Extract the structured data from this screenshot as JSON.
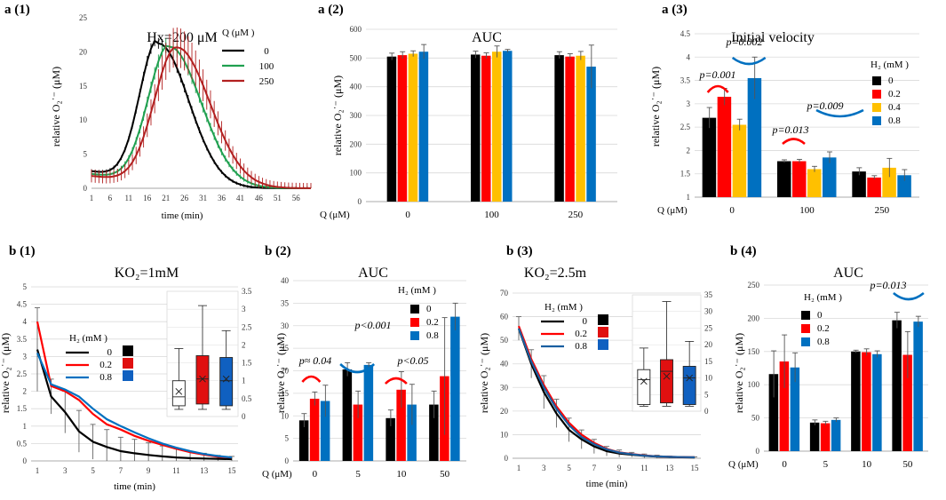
{
  "figure": {
    "colors": {
      "black": "#000000",
      "red": "#ff0000",
      "yellow": "#ffc000",
      "blue": "#0070c0",
      "green": "#20a050",
      "darkred": "#b22020"
    },
    "boxplot_colors": [
      "#ffffff",
      "#e01010",
      "#1060c0"
    ]
  },
  "chart_data": [
    {
      "id": "a1",
      "panel_label": "a (1)",
      "type": "line",
      "title": "Hx=200 μM",
      "xlabel": "time (min)",
      "ylabel": "relative O₂˙⁻ (μM)",
      "legend_title": "Q (μM )",
      "xticks": [
        "1",
        "6",
        "11",
        "16",
        "21",
        "26",
        "31",
        "36",
        "41",
        "46",
        "51",
        "56"
      ],
      "yticks": [
        "0",
        "5",
        "10",
        "15",
        "20",
        "25"
      ],
      "xlim": [
        1,
        60
      ],
      "ylim": [
        0,
        25
      ],
      "series": [
        {
          "name": "0",
          "color": "#000000",
          "peak_time": 19,
          "peak": 22.0,
          "rise": 7.0,
          "fall": 11.5,
          "start": 2.5,
          "err": 0.6
        },
        {
          "name": "100",
          "color": "#20a050",
          "peak_time": 22,
          "peak": 21.4,
          "rise": 8.0,
          "fall": 12.0,
          "start": 2.1,
          "err": 0.8
        },
        {
          "name": "250",
          "color": "#b22020",
          "peak_time": 24,
          "peak": 21.2,
          "rise": 8.5,
          "fall": 12.5,
          "start": 1.8,
          "err": 2.2
        }
      ]
    },
    {
      "id": "a2",
      "panel_label": "a (2)",
      "type": "bar",
      "title": "AUC",
      "xlabel": "Q (μM)",
      "ylabel": "relative O₂˙⁻ (μM)",
      "categories": [
        "0",
        "100",
        "250"
      ],
      "yticks": [
        "0",
        "100",
        "200",
        "300",
        "400",
        "500",
        "600"
      ],
      "ylim": [
        0,
        600
      ],
      "series": [
        {
          "name": "0",
          "color": "#000000",
          "values": [
            505,
            512,
            510
          ],
          "errors": [
            12,
            12,
            12
          ]
        },
        {
          "name": "0.2",
          "color": "#ff0000",
          "values": [
            510,
            508,
            505
          ],
          "errors": [
            12,
            10,
            10
          ]
        },
        {
          "name": "0.4",
          "color": "#ffc000",
          "values": [
            515,
            522,
            508
          ],
          "errors": [
            10,
            20,
            15
          ]
        },
        {
          "name": "0.8",
          "color": "#0070c0",
          "values": [
            522,
            525,
            470
          ],
          "errors": [
            25,
            5,
            75
          ]
        }
      ]
    },
    {
      "id": "a3",
      "panel_label": "a (3)",
      "type": "bar",
      "title": "Initial velocity",
      "xlabel": "Q (μM)",
      "ylabel": "relative O₂˙⁻ (μM)",
      "legend_title": "H₂ (mM )",
      "categories": [
        "0",
        "100",
        "250"
      ],
      "yticks": [
        "1",
        "1.5",
        "2",
        "2.5",
        "3",
        "3.5",
        "4",
        "4.5"
      ],
      "ylim": [
        1,
        4.5
      ],
      "series": [
        {
          "name": "0",
          "color": "#000000",
          "values": [
            2.7,
            1.77,
            1.55
          ],
          "errors": [
            0.22,
            0.03,
            0.08
          ]
        },
        {
          "name": "0.2",
          "color": "#ff0000",
          "values": [
            3.15,
            1.77,
            1.42
          ],
          "errors": [
            0.18,
            0.04,
            0.04
          ]
        },
        {
          "name": "0.4",
          "color": "#ffc000",
          "values": [
            2.55,
            1.6,
            1.63
          ],
          "errors": [
            0.12,
            0.06,
            0.2
          ]
        },
        {
          "name": "0.8",
          "color": "#0070c0",
          "values": [
            3.55,
            1.85,
            1.47
          ],
          "errors": [
            0.45,
            0.12,
            0.12
          ]
        }
      ],
      "annotations": [
        "p=0.001",
        "p=0.002",
        "p=0.013",
        "p=0.009"
      ]
    },
    {
      "id": "b1",
      "panel_label": "b (1)",
      "type": "line",
      "title": "KO₂=1mM",
      "xlabel": "time (min)",
      "ylabel": "relative O₂˙⁻ (μM)",
      "legend_title": "H₂ (mM )",
      "xticks": [
        "1",
        "3",
        "5",
        "7",
        "9",
        "11",
        "13",
        "15"
      ],
      "yticks": [
        "0",
        "0.5",
        "1",
        "1.5",
        "2",
        "2.5",
        "3",
        "3.5",
        "4",
        "4.5",
        "5"
      ],
      "xlim": [
        1,
        15
      ],
      "ylim": [
        0,
        5
      ],
      "series": [
        {
          "name": "0",
          "color": "#000000",
          "values": [
            3.2,
            1.85,
            1.4,
            0.85,
            0.55,
            0.4,
            0.28,
            0.22,
            0.17,
            0.13,
            0.1,
            0.08,
            0.07,
            0.06,
            0.05
          ]
        },
        {
          "name": "0.2",
          "color": "#ff0000",
          "values": [
            4.0,
            2.15,
            2.0,
            1.75,
            1.35,
            1.05,
            0.9,
            0.72,
            0.58,
            0.46,
            0.35,
            0.25,
            0.18,
            0.12,
            0.1
          ]
        },
        {
          "name": "0.8",
          "color": "#0070c0",
          "values": [
            3.1,
            2.2,
            2.05,
            1.85,
            1.5,
            1.2,
            1.0,
            0.82,
            0.65,
            0.5,
            0.38,
            0.28,
            0.2,
            0.14,
            0.1
          ]
        }
      ],
      "errors": [
        1.2,
        0.5,
        0.6,
        0.6,
        0.5,
        0.5,
        0.4,
        0.4,
        0.35,
        0.3,
        0.25,
        0.2,
        0.15,
        0.1,
        0.08
      ],
      "boxplot": [
        {
          "min": 0.2,
          "q1": 0.3,
          "median": 0.55,
          "q3": 1.0,
          "max": 1.9,
          "mean": 0.7
        },
        {
          "min": 0.2,
          "q1": 0.35,
          "median": 1.05,
          "q3": 1.7,
          "max": 3.1,
          "mean": 1.05
        },
        {
          "min": 0.2,
          "q1": 0.3,
          "median": 1.0,
          "q3": 1.65,
          "max": 2.4,
          "mean": 1.05
        }
      ]
    },
    {
      "id": "b2",
      "panel_label": "b (2)",
      "type": "bar",
      "title": "AUC",
      "xlabel": "Q (μM)",
      "ylabel": "relative O₂˙⁻ (μM)",
      "legend_title": "H₂ (mM )",
      "categories": [
        "0",
        "5",
        "10",
        "50"
      ],
      "yticks": [
        "0",
        "5",
        "10",
        "15",
        "20",
        "25",
        "30",
        "35",
        "40"
      ],
      "ylim": [
        0,
        40
      ],
      "series": [
        {
          "name": "0",
          "color": "#000000",
          "values": [
            9,
            20.3,
            9.5,
            12.5
          ],
          "errors": [
            1.5,
            1.5,
            1.8,
            3.0
          ]
        },
        {
          "name": "0.2",
          "color": "#ff0000",
          "values": [
            13.8,
            12.5,
            15.8,
            18.8
          ],
          "errors": [
            1.5,
            3.0,
            4.0,
            13.0
          ]
        },
        {
          "name": "0.8",
          "color": "#0070c0",
          "values": [
            13.3,
            21.3,
            12.5,
            32
          ],
          "errors": [
            3.5,
            0.5,
            4.5,
            3.0
          ]
        }
      ],
      "annotations": [
        "p≈ 0.04",
        "p<0.001",
        "p<0.05"
      ]
    },
    {
      "id": "b3",
      "panel_label": "b (3)",
      "type": "line",
      "title": "KO₂=2.5m",
      "xlabel": "time (min)",
      "ylabel": "relative O₂˙⁻ (μM)",
      "legend_title": "H₂ (mM )",
      "xticks": [
        "1",
        "3",
        "5",
        "7",
        "9",
        "11",
        "13",
        "15"
      ],
      "yticks": [
        "0",
        "10",
        "20",
        "30",
        "40",
        "50",
        "60",
        "70"
      ],
      "xlim": [
        1,
        15
      ],
      "ylim": [
        0,
        70
      ],
      "series": [
        {
          "name": "0",
          "color": "#000000",
          "values": [
            55,
            40,
            28,
            19,
            12,
            8,
            5,
            3,
            2,
            1.5,
            1,
            0.7,
            0.5,
            0.4,
            0.3
          ]
        },
        {
          "name": "0.2",
          "color": "#ff0000",
          "values": [
            56,
            42,
            31,
            22,
            15,
            10,
            6.5,
            4,
            2.5,
            1.8,
            1.2,
            0.8,
            0.6,
            0.5,
            0.4
          ]
        },
        {
          "name": "0.8",
          "color": "#1a5fa0",
          "values": [
            55,
            41,
            30,
            21,
            14,
            9,
            6,
            3.8,
            2.4,
            1.7,
            1.1,
            0.8,
            0.6,
            0.5,
            0.4
          ]
        }
      ],
      "errors": [
        5,
        6,
        7,
        6,
        5,
        4,
        3,
        2,
        1.5,
        1,
        0.8,
        0.6,
        0.4,
        0.3,
        0.3
      ],
      "boxplot": [
        {
          "min": 1.5,
          "q1": 2.0,
          "median": 9.5,
          "q3": 12.5,
          "max": 19,
          "mean": 9
        },
        {
          "min": 1.5,
          "q1": 2.5,
          "median": 12,
          "q3": 15.5,
          "max": 33,
          "mean": 10.5
        },
        {
          "min": 1.5,
          "q1": 2.0,
          "median": 10,
          "q3": 13.5,
          "max": 21,
          "mean": 10
        }
      ]
    },
    {
      "id": "b4",
      "panel_label": "b (4)",
      "type": "bar",
      "title": "AUC",
      "xlabel": "Q (μM)",
      "ylabel": "relative O₂˙⁻ (μM)",
      "legend_title": "H₂ (mM )",
      "categories": [
        "0",
        "5",
        "10",
        "50"
      ],
      "yticks": [
        "0",
        "50",
        "100",
        "150",
        "200",
        "250"
      ],
      "ylim": [
        0,
        250
      ],
      "series": [
        {
          "name": "0",
          "color": "#000000",
          "values": [
            116,
            43,
            150,
            197
          ],
          "errors": [
            35,
            4,
            2,
            12
          ]
        },
        {
          "name": "0.2",
          "color": "#ff0000",
          "values": [
            135,
            42,
            149,
            145
          ],
          "errors": [
            40,
            3,
            5,
            35
          ]
        },
        {
          "name": "0.8",
          "color": "#0070c0",
          "values": [
            126,
            47,
            146,
            195
          ],
          "errors": [
            22,
            3,
            5,
            8
          ]
        }
      ],
      "annotations": [
        "p=0.013"
      ]
    }
  ]
}
